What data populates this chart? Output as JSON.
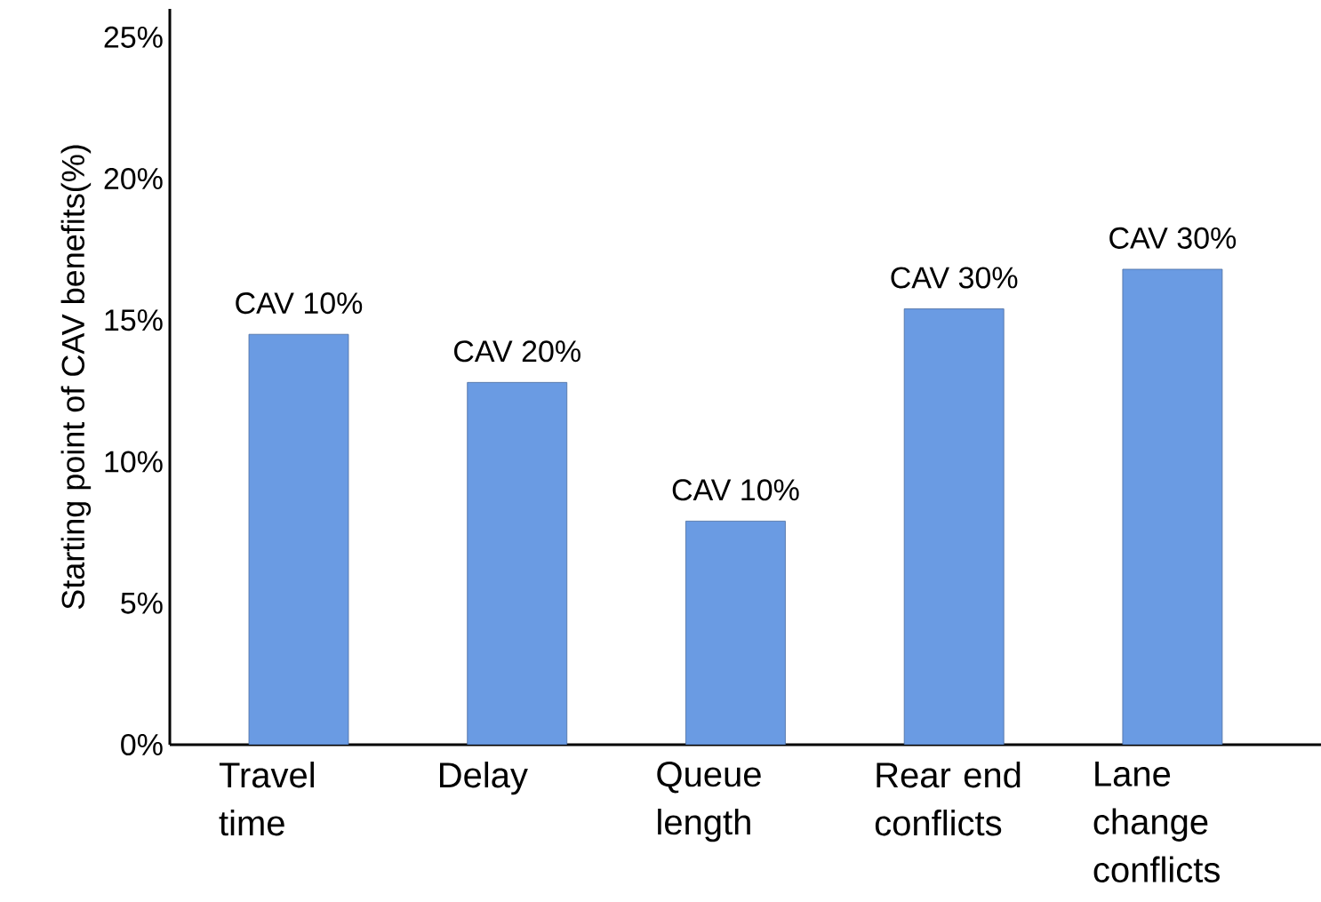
{
  "chart_data": {
    "type": "bar",
    "ylabel": "Starting point of CAV benefits(%)",
    "categories": [
      "Travel time",
      "Delay",
      "Queue length",
      "Rear end conflicts",
      "Lane change conflicts"
    ],
    "values": [
      14.5,
      12.8,
      7.9,
      15.4,
      16.8
    ],
    "color": "#6a9be3",
    "ylim": [
      0,
      26
    ],
    "yticks": [
      {
        "value": 0,
        "label": "0%"
      },
      {
        "value": 5,
        "label": "5%"
      },
      {
        "value": 10,
        "label": "10%"
      },
      {
        "value": 15,
        "label": "15%"
      },
      {
        "value": 20,
        "label": "20%"
      },
      {
        "value": 25,
        "label": "25%"
      }
    ],
    "grid": false,
    "annotations": [
      {
        "text": "CAV 10%",
        "x": "Travel time",
        "y": 14.5
      },
      {
        "text": "CAV 20%",
        "x": "Delay",
        "y": 12.8
      },
      {
        "text": "CAV 10%",
        "x": "Queue length",
        "y": 7.9
      },
      {
        "text": "CAV 30%",
        "x": "Rear end conflicts",
        "y": 15.4
      },
      {
        "text": "CAV 30%",
        "x": "Lane change conflicts",
        "y": 16.8
      }
    ]
  }
}
